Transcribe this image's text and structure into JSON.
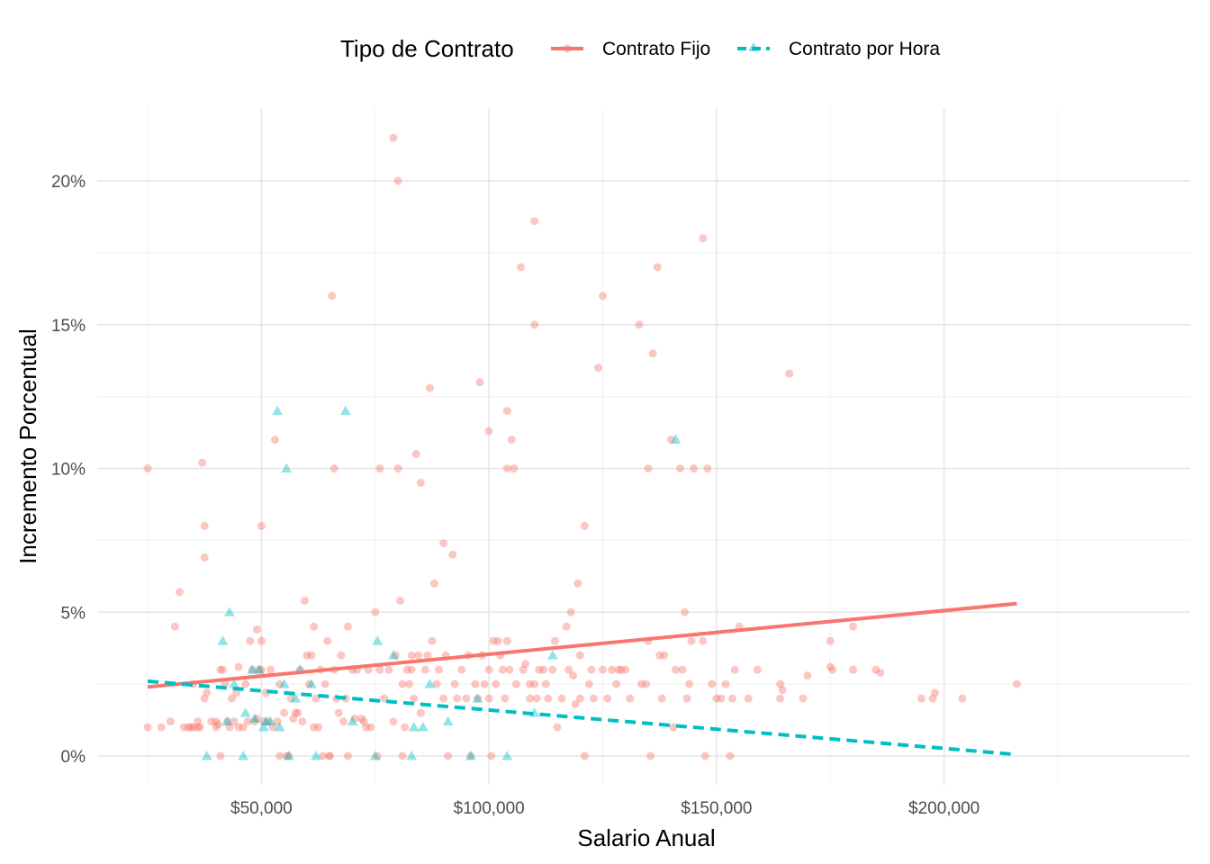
{
  "chart_data": {
    "type": "scatter",
    "title": "",
    "xlabel": "Salario Anual",
    "ylabel": "Incremento Porcentual",
    "xlim": [
      15000,
      225000
    ],
    "ylim": [
      -0.01,
      0.225
    ],
    "x_ticks": [
      {
        "value": 50000,
        "label": "$50,000"
      },
      {
        "value": 100000,
        "label": "$100,000"
      },
      {
        "value": 150000,
        "label": "$150,000"
      },
      {
        "value": 200000,
        "label": "$200,000"
      }
    ],
    "y_ticks": [
      {
        "value": 0,
        "label": "0%"
      },
      {
        "value": 0.05,
        "label": "5%"
      },
      {
        "value": 0.1,
        "label": "10%"
      },
      {
        "value": 0.15,
        "label": "15%"
      },
      {
        "value": 0.2,
        "label": "20%"
      }
    ],
    "grid": true,
    "legend": {
      "title": "Tipo de Contrato",
      "position": "top"
    },
    "series": [
      {
        "name": "Contrato Fijo",
        "color": "#F8766D",
        "marker": "circle",
        "line_style": "solid",
        "trend": [
          [
            25000,
            0.024
          ],
          [
            216000,
            0.053
          ]
        ],
        "points": [
          [
            25000,
            0.1
          ],
          [
            25000,
            0.01
          ],
          [
            28000,
            0.01
          ],
          [
            30000,
            0.012
          ],
          [
            31000,
            0.045
          ],
          [
            32000,
            0.057
          ],
          [
            33000,
            0.01
          ],
          [
            34000,
            0.01
          ],
          [
            34500,
            0.01
          ],
          [
            35000,
            0.01
          ],
          [
            35000,
            0.025
          ],
          [
            36000,
            0.01
          ],
          [
            36000,
            0.012
          ],
          [
            36500,
            0.01
          ],
          [
            37000,
            0.102
          ],
          [
            37500,
            0.08
          ],
          [
            37500,
            0.069
          ],
          [
            37500,
            0.02
          ],
          [
            38000,
            0.022
          ],
          [
            39000,
            0.012
          ],
          [
            40000,
            0.012
          ],
          [
            40000,
            0.01
          ],
          [
            40500,
            0.011
          ],
          [
            41000,
            0.03
          ],
          [
            41500,
            0.03
          ],
          [
            41000,
            0.0
          ],
          [
            42000,
            0.025
          ],
          [
            42500,
            0.012
          ],
          [
            43000,
            0.01
          ],
          [
            43500,
            0.02
          ],
          [
            44000,
            0.012
          ],
          [
            44500,
            0.022
          ],
          [
            45000,
            0.031
          ],
          [
            45000,
            0.01
          ],
          [
            46000,
            0.01
          ],
          [
            46500,
            0.025
          ],
          [
            47000,
            0.012
          ],
          [
            47500,
            0.04
          ],
          [
            48000,
            0.03
          ],
          [
            48500,
            0.012
          ],
          [
            49000,
            0.044
          ],
          [
            49000,
            0.013
          ],
          [
            49500,
            0.03
          ],
          [
            50000,
            0.08
          ],
          [
            50000,
            0.04
          ],
          [
            50000,
            0.03
          ],
          [
            50500,
            0.012
          ],
          [
            51000,
            0.022
          ],
          [
            51500,
            0.012
          ],
          [
            52000,
            0.03
          ],
          [
            52500,
            0.01
          ],
          [
            53000,
            0.11
          ],
          [
            53500,
            0.012
          ],
          [
            54000,
            0.025
          ],
          [
            54000,
            0.0
          ],
          [
            55000,
            0.015
          ],
          [
            55500,
            0.0
          ],
          [
            56000,
            0.0
          ],
          [
            56500,
            0.02
          ],
          [
            57000,
            0.013
          ],
          [
            57500,
            0.015
          ],
          [
            58000,
            0.015
          ],
          [
            58500,
            0.03
          ],
          [
            59000,
            0.012
          ],
          [
            59500,
            0.054
          ],
          [
            60000,
            0.035
          ],
          [
            60500,
            0.025
          ],
          [
            61000,
            0.035
          ],
          [
            61500,
            0.045
          ],
          [
            61500,
            0.01
          ],
          [
            62000,
            0.02
          ],
          [
            62500,
            0.01
          ],
          [
            63000,
            0.03
          ],
          [
            63500,
            0.0
          ],
          [
            64000,
            0.025
          ],
          [
            64500,
            0.04
          ],
          [
            65000,
            0.0
          ],
          [
            65000,
            0.0
          ],
          [
            65500,
            0.16
          ],
          [
            66000,
            0.1
          ],
          [
            66000,
            0.03
          ],
          [
            66500,
            0.02
          ],
          [
            67000,
            0.015
          ],
          [
            67500,
            0.035
          ],
          [
            68000,
            0.012
          ],
          [
            68500,
            0.02
          ],
          [
            69000,
            0.045
          ],
          [
            69000,
            0.0
          ],
          [
            70000,
            0.03
          ],
          [
            70500,
            0.013
          ],
          [
            71000,
            0.03
          ],
          [
            72000,
            0.013
          ],
          [
            72500,
            0.012
          ],
          [
            73000,
            0.01
          ],
          [
            73500,
            0.03
          ],
          [
            74000,
            0.01
          ],
          [
            75000,
            0.05
          ],
          [
            75500,
            0.0
          ],
          [
            76000,
            0.1
          ],
          [
            76000,
            0.03
          ],
          [
            77000,
            0.02
          ],
          [
            78000,
            0.03
          ],
          [
            79000,
            0.215
          ],
          [
            79000,
            0.012
          ],
          [
            79500,
            0.035
          ],
          [
            80000,
            0.2
          ],
          [
            80000,
            0.1
          ],
          [
            80500,
            0.054
          ],
          [
            81000,
            0.0
          ],
          [
            81000,
            0.025
          ],
          [
            81500,
            0.01
          ],
          [
            82000,
            0.03
          ],
          [
            82500,
            0.025
          ],
          [
            83000,
            0.035
          ],
          [
            83000,
            0.03
          ],
          [
            83500,
            0.02
          ],
          [
            84000,
            0.105
          ],
          [
            84500,
            0.035
          ],
          [
            85000,
            0.095
          ],
          [
            85000,
            0.015
          ],
          [
            86000,
            0.03
          ],
          [
            86500,
            0.035
          ],
          [
            87000,
            0.128
          ],
          [
            87500,
            0.04
          ],
          [
            88000,
            0.06
          ],
          [
            88500,
            0.025
          ],
          [
            89000,
            0.03
          ],
          [
            90000,
            0.074
          ],
          [
            90000,
            0.02
          ],
          [
            90500,
            0.035
          ],
          [
            91000,
            0.0
          ],
          [
            92000,
            0.07
          ],
          [
            92500,
            0.025
          ],
          [
            93000,
            0.02
          ],
          [
            94000,
            0.03
          ],
          [
            95000,
            0.02
          ],
          [
            95500,
            0.035
          ],
          [
            96000,
            0.0
          ],
          [
            97000,
            0.025
          ],
          [
            97500,
            0.02
          ],
          [
            98000,
            0.13
          ],
          [
            98500,
            0.035
          ],
          [
            99000,
            0.025
          ],
          [
            100000,
            0.113
          ],
          [
            100000,
            0.03
          ],
          [
            100000,
            0.02
          ],
          [
            100500,
            0.0
          ],
          [
            101000,
            0.04
          ],
          [
            101500,
            0.025
          ],
          [
            102000,
            0.04
          ],
          [
            102500,
            0.035
          ],
          [
            103000,
            0.03
          ],
          [
            103500,
            0.02
          ],
          [
            104000,
            0.12
          ],
          [
            104000,
            0.1
          ],
          [
            104000,
            0.04
          ],
          [
            104500,
            0.03
          ],
          [
            105000,
            0.11
          ],
          [
            105500,
            0.1
          ],
          [
            106000,
            0.025
          ],
          [
            107000,
            0.17
          ],
          [
            107500,
            0.03
          ],
          [
            108000,
            0.032
          ],
          [
            109000,
            0.025
          ],
          [
            109000,
            0.02
          ],
          [
            110000,
            0.186
          ],
          [
            110000,
            0.15
          ],
          [
            110000,
            0.025
          ],
          [
            110500,
            0.02
          ],
          [
            111000,
            0.03
          ],
          [
            112000,
            0.03
          ],
          [
            112500,
            0.025
          ],
          [
            113000,
            0.02
          ],
          [
            114000,
            0.03
          ],
          [
            114500,
            0.04
          ],
          [
            115000,
            0.01
          ],
          [
            116000,
            0.02
          ],
          [
            117000,
            0.045
          ],
          [
            117500,
            0.03
          ],
          [
            118000,
            0.05
          ],
          [
            118500,
            0.028
          ],
          [
            119000,
            0.018
          ],
          [
            119500,
            0.06
          ],
          [
            120000,
            0.035
          ],
          [
            120000,
            0.02
          ],
          [
            121000,
            0.08
          ],
          [
            121000,
            0.0
          ],
          [
            122000,
            0.025
          ],
          [
            122500,
            0.03
          ],
          [
            123000,
            0.02
          ],
          [
            124000,
            0.135
          ],
          [
            125000,
            0.16
          ],
          [
            125000,
            0.03
          ],
          [
            126000,
            0.02
          ],
          [
            127000,
            0.03
          ],
          [
            128000,
            0.025
          ],
          [
            128500,
            0.03
          ],
          [
            129000,
            0.03
          ],
          [
            130000,
            0.03
          ],
          [
            131000,
            0.02
          ],
          [
            133000,
            0.15
          ],
          [
            133500,
            0.025
          ],
          [
            134500,
            0.025
          ],
          [
            135000,
            0.1
          ],
          [
            135000,
            0.04
          ],
          [
            135500,
            0.0
          ],
          [
            136000,
            0.14
          ],
          [
            137000,
            0.17
          ],
          [
            137500,
            0.035
          ],
          [
            138000,
            0.02
          ],
          [
            138500,
            0.035
          ],
          [
            140000,
            0.11
          ],
          [
            140500,
            0.01
          ],
          [
            141000,
            0.03
          ],
          [
            142000,
            0.1
          ],
          [
            142500,
            0.03
          ],
          [
            143000,
            0.05
          ],
          [
            143500,
            0.02
          ],
          [
            144000,
            0.025
          ],
          [
            144500,
            0.04
          ],
          [
            145000,
            0.1
          ],
          [
            147000,
            0.18
          ],
          [
            147000,
            0.04
          ],
          [
            147500,
            0.0
          ],
          [
            148000,
            0.1
          ],
          [
            149000,
            0.025
          ],
          [
            150000,
            0.02
          ],
          [
            151000,
            0.02
          ],
          [
            152000,
            0.025
          ],
          [
            153000,
            0.0
          ],
          [
            153500,
            0.02
          ],
          [
            154000,
            0.03
          ],
          [
            155000,
            0.045
          ],
          [
            157000,
            0.02
          ],
          [
            159000,
            0.03
          ],
          [
            164000,
            0.025
          ],
          [
            164000,
            0.02
          ],
          [
            164500,
            0.023
          ],
          [
            166000,
            0.133
          ],
          [
            169000,
            0.02
          ],
          [
            170000,
            0.028
          ],
          [
            175000,
            0.031
          ],
          [
            175000,
            0.04
          ],
          [
            175500,
            0.03
          ],
          [
            180000,
            0.045
          ],
          [
            180000,
            0.03
          ],
          [
            185000,
            0.03
          ],
          [
            186000,
            0.029
          ],
          [
            195000,
            0.02
          ],
          [
            197500,
            0.02
          ],
          [
            198000,
            0.022
          ],
          [
            204000,
            0.02
          ],
          [
            216000,
            0.025
          ]
        ]
      },
      {
        "name": "Contrato por Hora",
        "color": "#00BFC4",
        "marker": "triangle",
        "line_style": "dashed",
        "trend": [
          [
            25000,
            0.026
          ],
          [
            216000,
            0.0005
          ]
        ],
        "points": [
          [
            38000,
            0.0
          ],
          [
            41500,
            0.04
          ],
          [
            42500,
            0.012
          ],
          [
            43000,
            0.05
          ],
          [
            44000,
            0.025
          ],
          [
            46000,
            0.0
          ],
          [
            46500,
            0.015
          ],
          [
            48000,
            0.03
          ],
          [
            48500,
            0.013
          ],
          [
            49500,
            0.03
          ],
          [
            50500,
            0.01
          ],
          [
            51000,
            0.012
          ],
          [
            52000,
            0.012
          ],
          [
            53500,
            0.12
          ],
          [
            54000,
            0.01
          ],
          [
            55000,
            0.025
          ],
          [
            55500,
            0.1
          ],
          [
            56000,
            0.0
          ],
          [
            57500,
            0.02
          ],
          [
            58500,
            0.03
          ],
          [
            61000,
            0.025
          ],
          [
            62000,
            0.0
          ],
          [
            68500,
            0.12
          ],
          [
            70000,
            0.012
          ],
          [
            75000,
            0.0
          ],
          [
            75500,
            0.04
          ],
          [
            79000,
            0.035
          ],
          [
            83000,
            0.0
          ],
          [
            83500,
            0.01
          ],
          [
            85500,
            0.01
          ],
          [
            87000,
            0.025
          ],
          [
            91000,
            0.012
          ],
          [
            96000,
            0.0
          ],
          [
            97500,
            0.02
          ],
          [
            104000,
            0.0
          ],
          [
            110000,
            0.015
          ],
          [
            114000,
            0.035
          ],
          [
            141000,
            0.11
          ]
        ]
      }
    ]
  }
}
